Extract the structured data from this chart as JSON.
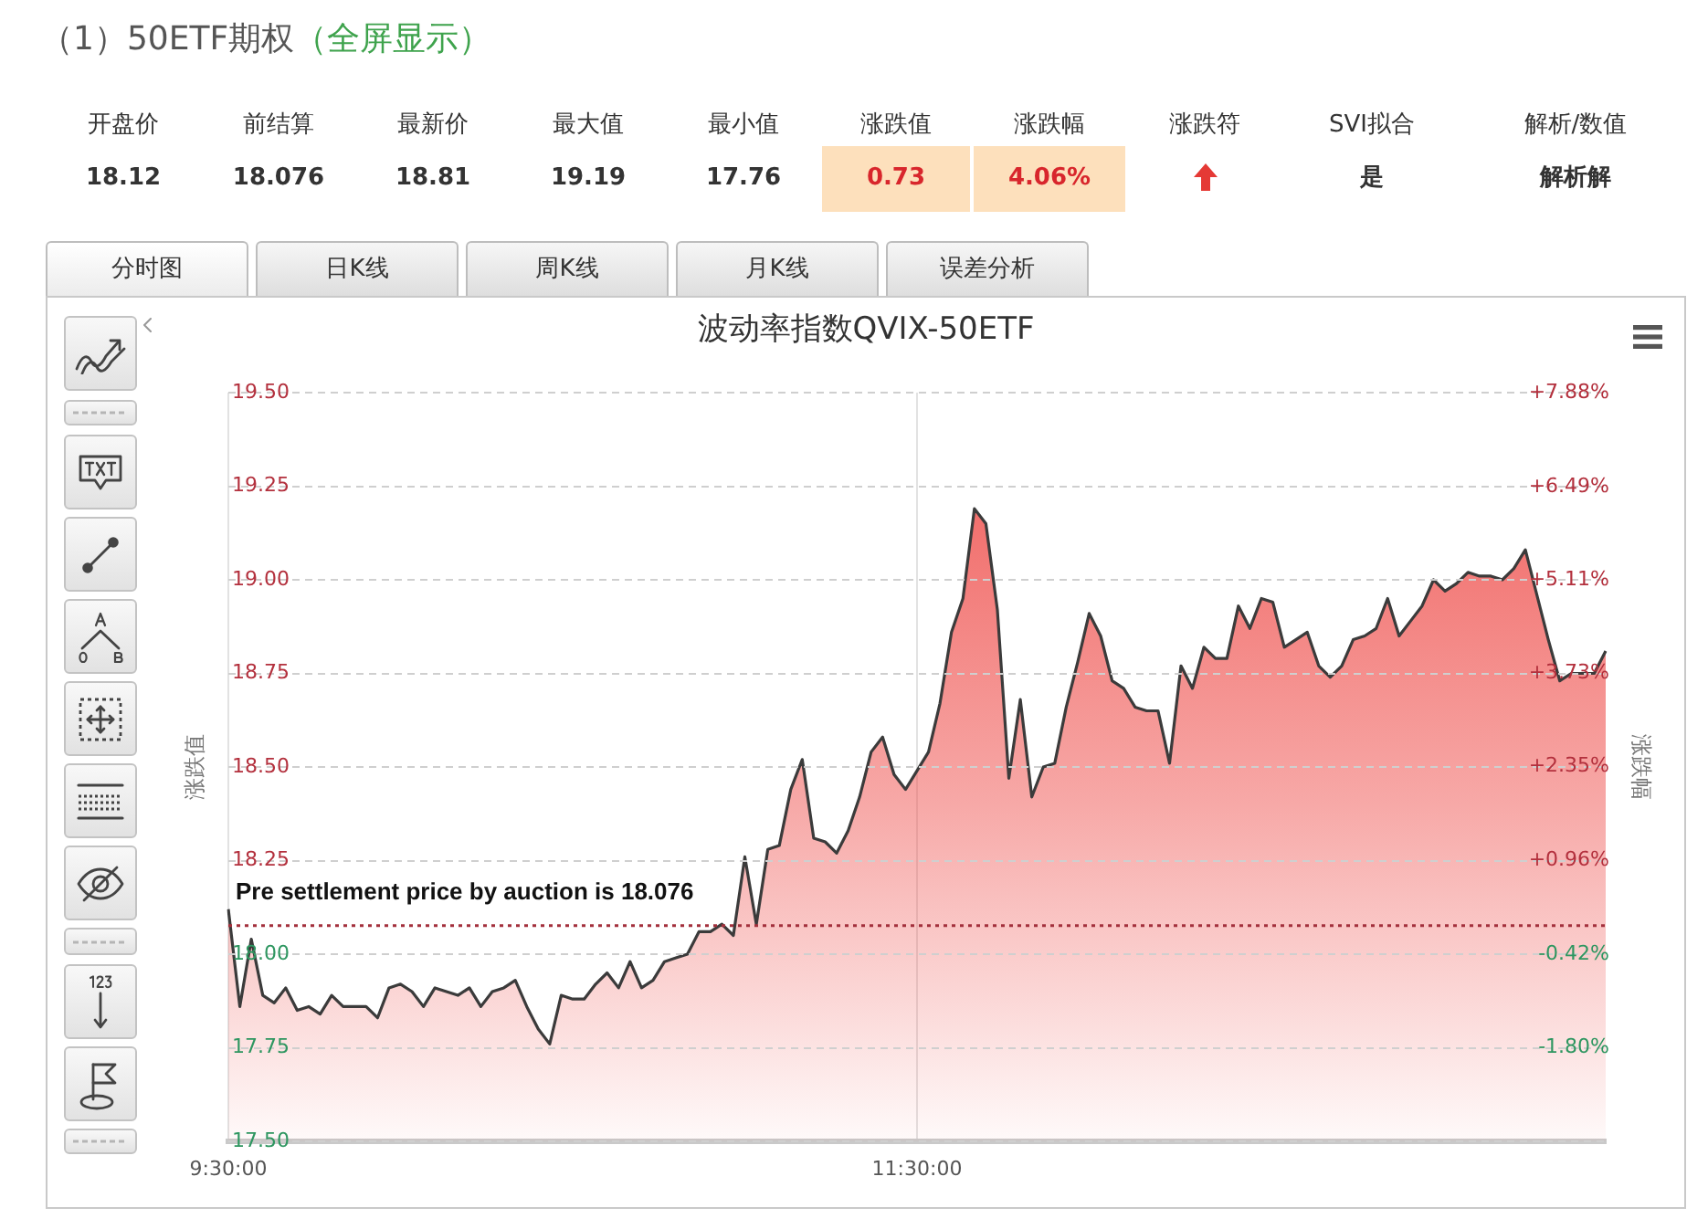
{
  "chart_data": [
    {
      "type": "other",
      "title": "（1）50ETF期权",
      "subtitle": "（全屏显示）",
      "categories": [
        "开盘价",
        "前结算",
        "最新价",
        "最大值",
        "最小值",
        "涨跌值",
        "涨跌幅",
        "涨跌符",
        "SVI拟合",
        "解析/数值"
      ],
      "value_labels": [
        "18.12",
        "18.076",
        "18.81",
        "19.19",
        "17.76",
        "0.73",
        "4.06%",
        null,
        "是",
        "解析解"
      ],
      "colors": [
        null,
        null,
        null,
        null,
        null,
        "#fde0bc",
        "#fde0bc",
        null,
        null,
        null
      ],
      "annotations": [
        "分时图",
        "日K线",
        "周K线",
        "月K线",
        "误差分析"
      ]
    },
    {
      "type": "area",
      "title": "波动率指数QVIX-50ETF",
      "ylabel": "涨跌值",
      "y2label": "涨跌幅",
      "categories": [
        "9:30:00",
        null,
        null,
        null,
        null,
        null,
        null,
        null,
        null,
        null,
        null,
        null,
        null,
        null,
        null,
        null,
        null,
        null,
        null,
        null,
        null,
        null,
        null,
        null,
        null,
        null,
        null,
        null,
        null,
        null,
        null,
        null,
        null,
        null,
        null,
        null,
        null,
        null,
        null,
        null,
        null,
        null,
        null,
        null,
        null,
        null,
        null,
        null,
        null,
        null,
        null,
        null,
        null,
        null,
        null,
        null,
        null,
        null,
        null,
        null,
        "11:30:00",
        null,
        null,
        null,
        null,
        null,
        null,
        null,
        null,
        null,
        null,
        null,
        null,
        null,
        null,
        null,
        null,
        null,
        null,
        null,
        null,
        null,
        null,
        null,
        null,
        null,
        null,
        null,
        null,
        null,
        null,
        null,
        null,
        null,
        null,
        null,
        null,
        null,
        null,
        null,
        null,
        null,
        null,
        null,
        null,
        null,
        null,
        null,
        null,
        null,
        null,
        null,
        null,
        null,
        null,
        null,
        null,
        null,
        null,
        null,
        null
      ],
      "series": [
        {
          "color": "#ef5350",
          "values": [
            18.12,
            17.86,
            18.04,
            17.89,
            17.87,
            17.91,
            17.85,
            17.86,
            17.84,
            17.89,
            17.86,
            17.86,
            17.86,
            17.83,
            17.91,
            17.92,
            17.9,
            17.86,
            17.91,
            17.9,
            17.89,
            17.91,
            17.86,
            17.9,
            17.91,
            17.93,
            17.86,
            17.8,
            17.76,
            17.89,
            17.88,
            17.88,
            17.92,
            17.95,
            17.91,
            17.98,
            17.91,
            17.93,
            17.98,
            17.99,
            18.0,
            18.06,
            18.06,
            18.08,
            18.05,
            18.26,
            18.08,
            18.28,
            18.29,
            18.44,
            18.52,
            18.31,
            18.3,
            18.27,
            18.33,
            18.42,
            18.54,
            18.58,
            18.48,
            18.44,
            18.49,
            18.54,
            18.67,
            18.86,
            18.95,
            19.19,
            19.15,
            18.92,
            18.47,
            18.68,
            18.42,
            18.5,
            18.51,
            18.66,
            18.78,
            18.91,
            18.85,
            18.73,
            18.71,
            18.66,
            18.65,
            18.65,
            18.51,
            18.77,
            18.71,
            18.82,
            18.79,
            18.79,
            18.93,
            18.87,
            18.95,
            18.94,
            18.82,
            18.84,
            18.86,
            18.77,
            18.74,
            18.77,
            18.84,
            18.85,
            18.87,
            18.95,
            18.85,
            18.89,
            18.93,
            19.0,
            18.97,
            18.99,
            19.02,
            19.01,
            19.01,
            19.0,
            19.03,
            19.08,
            18.96,
            18.84,
            18.73,
            18.75,
            18.75,
            18.75,
            18.81
          ]
        }
      ],
      "ylim": [
        17.5,
        19.5
      ],
      "yticks": [
        {
          "value": 17.5,
          "label": "17.50"
        },
        {
          "value": 17.75,
          "label": "17.75"
        },
        {
          "value": 18.0,
          "label": "18.00"
        },
        {
          "value": 18.25,
          "label": "18.25"
        },
        {
          "value": 18.5,
          "label": "18.50"
        },
        {
          "value": 18.75,
          "label": "18.75"
        },
        {
          "value": 19.0,
          "label": "19.00"
        },
        {
          "value": 19.25,
          "label": "19.25"
        },
        {
          "value": 19.5,
          "label": "19.50"
        }
      ],
      "y2lim": [
        -3.19,
        7.88
      ],
      "y2ticks": [
        {
          "value": -1.8,
          "label": "-1.80%"
        },
        {
          "value": -0.42,
          "label": "-0.42%"
        },
        {
          "value": 0.96,
          "label": "+0.96%"
        },
        {
          "value": 2.35,
          "label": "+2.35%"
        },
        {
          "value": 3.73,
          "label": "+3.73%"
        },
        {
          "value": 5.11,
          "label": "+5.11%"
        },
        {
          "value": 6.49,
          "label": "+6.49%"
        },
        {
          "value": 7.88,
          "label": "+7.88%"
        }
      ],
      "ref_lines": [
        {
          "axis": "y",
          "value": 18.076,
          "label": "Pre settlement price by auction is 18.076",
          "color": "#a3303c",
          "line_style": "dotted"
        }
      ],
      "grid": true
    }
  ]
}
